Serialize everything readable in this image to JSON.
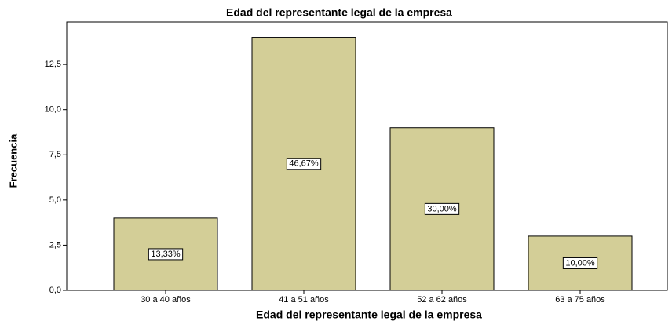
{
  "chart_data": {
    "type": "bar",
    "title": "Edad del representante legal de la empresa",
    "x_label": "Edad del representante legal de la empresa",
    "y_label": "Frecuencia",
    "categories": [
      "30 a 40 años",
      "41 a 51 años",
      "52 a 62 años",
      "63 a 75 años"
    ],
    "values": [
      4,
      14,
      9,
      3
    ],
    "percentages": [
      13.33,
      46.67,
      30.0,
      10.0
    ],
    "percentage_labels": [
      "13,33%",
      "46,67%",
      "30,00%",
      "10,00%"
    ],
    "color": "#d3ce97",
    "ylim": [
      0,
      14.85
    ],
    "yticks": [
      {
        "value": 0,
        "label": "0,0"
      },
      {
        "value": 2.5,
        "label": "2,5"
      },
      {
        "value": 5,
        "label": "5,0"
      },
      {
        "value": 7.5,
        "label": "7,5"
      },
      {
        "value": 10,
        "label": "10,0"
      },
      {
        "value": 12.5,
        "label": "12,5"
      }
    ],
    "grid": false
  }
}
